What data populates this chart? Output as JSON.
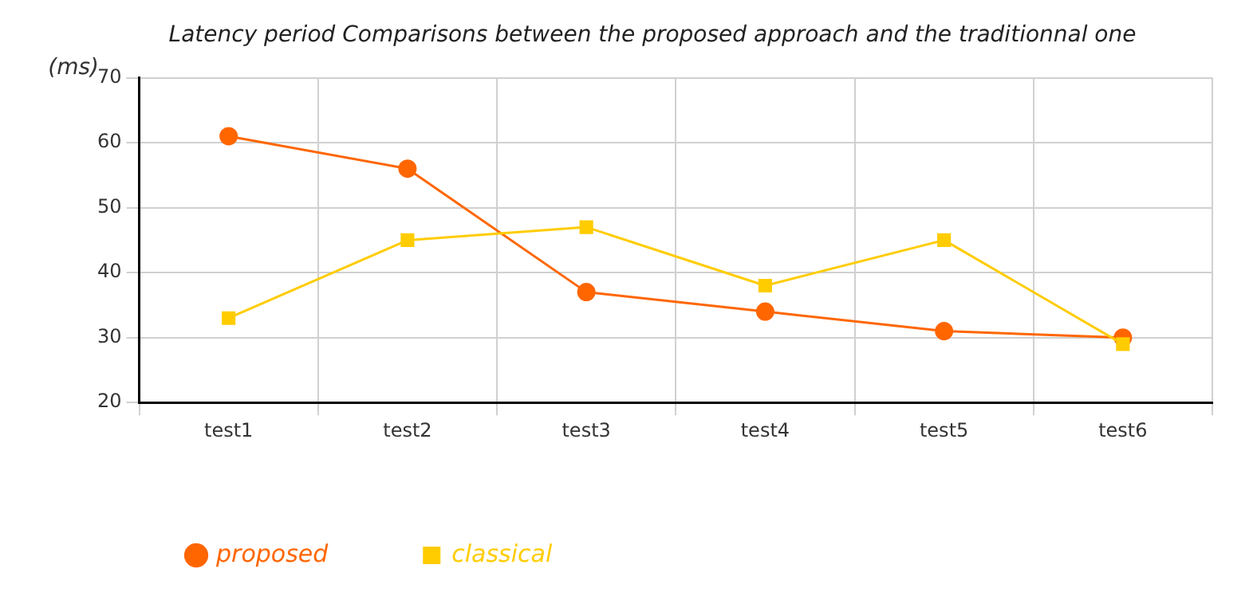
{
  "chart_data": {
    "type": "line",
    "title": "Latency period Comparisons between the proposed approach and the traditionnal one",
    "ylabel": "(ms)",
    "categories": [
      "test1",
      "test2",
      "test3",
      "test4",
      "test5",
      "test6"
    ],
    "series": [
      {
        "name": "proposed",
        "color": "#ff6600",
        "marker": "circle",
        "values": [
          61,
          56,
          37,
          34,
          31,
          30
        ]
      },
      {
        "name": "classical",
        "color": "#ffcc00",
        "marker": "square",
        "values": [
          33,
          45,
          47,
          38,
          45,
          29
        ]
      }
    ],
    "ylim": [
      20,
      70
    ],
    "yticks": [
      20,
      30,
      40,
      50,
      60,
      70
    ],
    "grid": true,
    "legend": "bottom left"
  }
}
